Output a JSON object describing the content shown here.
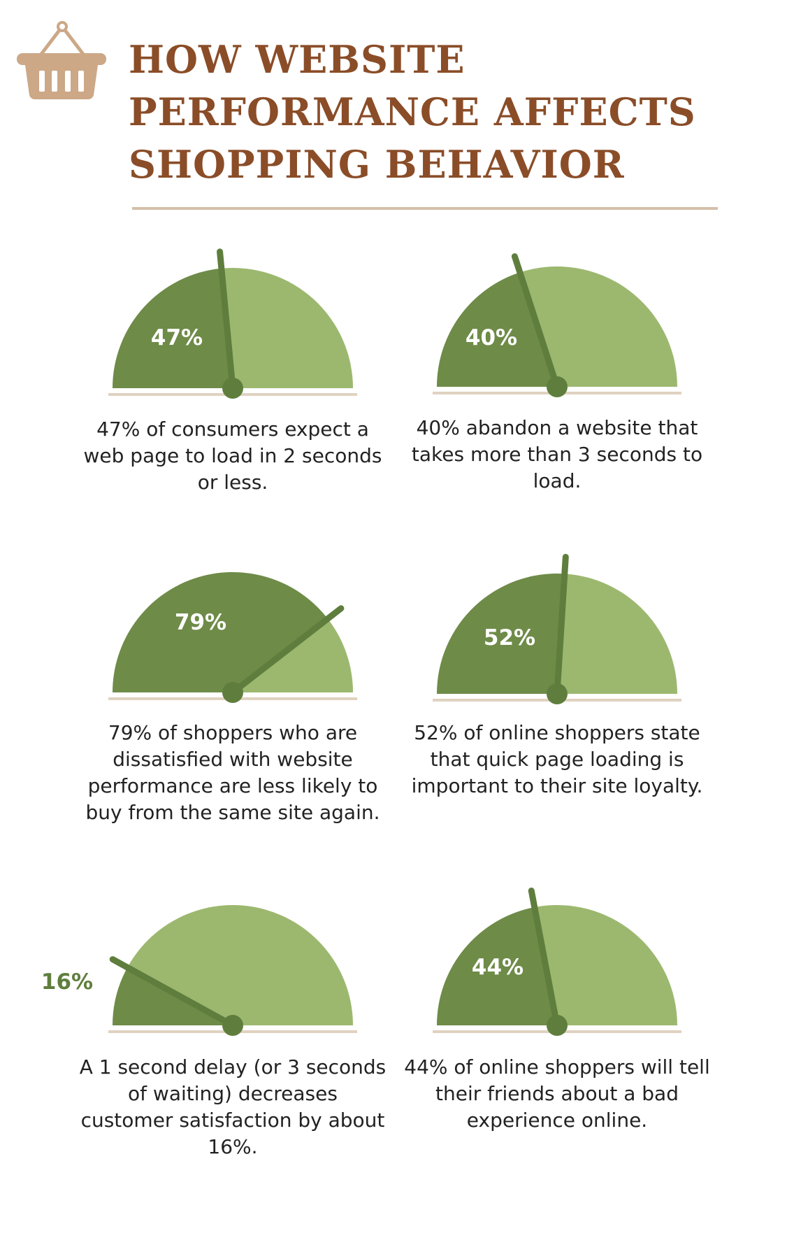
{
  "title_lines": [
    "HOW WEBSITE",
    "PERFORMANCE AFFECTS",
    "SHOPPING BEHAVIOR"
  ],
  "colors": {
    "title": "#8a4d28",
    "gauge_dark": "#6e8b48",
    "gauge_light": "#9cb86f",
    "needle": "#5f7e3d",
    "base_line": "#e0d2c0",
    "caption_text": "#222222",
    "basket": "#cca887"
  },
  "icons": {
    "header": "shopping-basket-icon"
  },
  "chart_data": {
    "type": "gauge",
    "gauges": [
      {
        "label": "47%",
        "value": 47,
        "caption": "47% of consumers expect a web page to load in 2 seconds or less."
      },
      {
        "label": "40%",
        "value": 40,
        "caption": "40% abandon a website that takes more than 3 seconds to load."
      },
      {
        "label": "79%",
        "value": 79,
        "caption": "79% of shoppers who are dissatisfied with website performance are less likely to buy from the same site again."
      },
      {
        "label": "52%",
        "value": 52,
        "caption": "52% of online shoppers state that quick page loading is important to their site loyalty."
      },
      {
        "label": "16%",
        "value": 16,
        "caption": "A 1 second delay (or 3 seconds of waiting) decreases customer satisfaction by about 16%."
      },
      {
        "label": "44%",
        "value": 44,
        "caption": "44% of online shoppers will tell their friends about a bad experience online."
      }
    ]
  }
}
